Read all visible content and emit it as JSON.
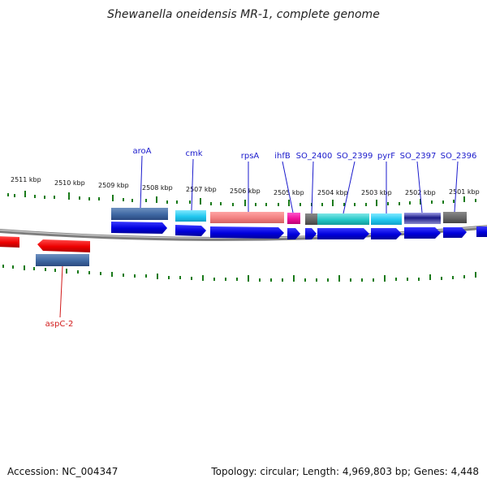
{
  "title": "Shewanella oneidensis MR-1, complete genome",
  "footer": {
    "accession": "Accession: NC_004347",
    "summary": "Topology: circular; Length: 4,969,803 bp; Genes: 4,448"
  },
  "scale": {
    "labels": [
      "2511 kbp",
      "2510 kbp",
      "2509 kbp",
      "2508 kbp",
      "2507 kbp",
      "2506 kbp",
      "2505 kbp",
      "2504 kbp",
      "2503 kbp",
      "2502 kbp",
      "2501 kbp"
    ]
  },
  "gene_labels": [
    {
      "name": "aroA",
      "color": "#1a1acc"
    },
    {
      "name": "cmk",
      "color": "#1a1acc"
    },
    {
      "name": "rpsA",
      "color": "#1a1acc"
    },
    {
      "name": "ihfB",
      "color": "#1a1acc"
    },
    {
      "name": "SO_2400",
      "color": "#1a1acc"
    },
    {
      "name": "SO_2399",
      "color": "#1a1acc"
    },
    {
      "name": "pyrF",
      "color": "#1a1acc"
    },
    {
      "name": "SO_2397",
      "color": "#1a1acc"
    },
    {
      "name": "SO_2396",
      "color": "#1a1acc"
    },
    {
      "name": "aspC-2",
      "color": "#d11a1a"
    }
  ],
  "colors": {
    "tick": "#1a7a1a",
    "backbone": "#8a8a8a",
    "gene_forward": "#1010ee",
    "gene_reverse": "#ee1010",
    "leader_blue": "#1a1acc",
    "leader_red": "#d11a1a"
  }
}
